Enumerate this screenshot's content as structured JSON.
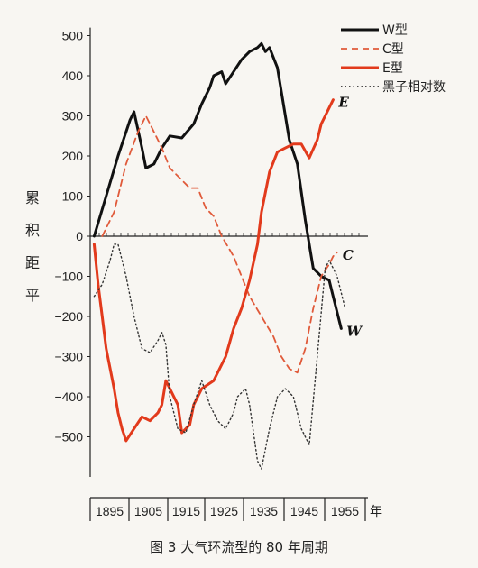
{
  "chart_data": {
    "type": "line",
    "caption": "图 3  大气环流型的 80 年周期",
    "ylabel": "累积距平",
    "xlabel": "年",
    "ylim": [
      -600,
      520
    ],
    "xlim": [
      1890,
      1962
    ],
    "yticks": [
      500,
      400,
      300,
      200,
      100,
      0,
      -100,
      -200,
      -300,
      -400,
      -500
    ],
    "xticks": [
      {
        "label": "1895",
        "value": 1895
      },
      {
        "label": "1905",
        "value": 1905
      },
      {
        "label": "1915",
        "value": 1915
      },
      {
        "label": "1925",
        "value": 1925
      },
      {
        "label": "1935",
        "value": 1935
      },
      {
        "label": "1945",
        "value": 1945
      },
      {
        "label": "1955",
        "value": 1955
      }
    ],
    "series": [
      {
        "name": "W型",
        "end_label": "W",
        "color": "#111111",
        "style": "solid",
        "points": [
          [
            1891,
            0
          ],
          [
            1894,
            100
          ],
          [
            1897,
            200
          ],
          [
            1900,
            290
          ],
          [
            1901,
            310
          ],
          [
            1903,
            220
          ],
          [
            1904,
            170
          ],
          [
            1906,
            180
          ],
          [
            1908,
            220
          ],
          [
            1910,
            250
          ],
          [
            1913,
            245
          ],
          [
            1916,
            280
          ],
          [
            1918,
            330
          ],
          [
            1920,
            370
          ],
          [
            1921,
            400
          ],
          [
            1923,
            410
          ],
          [
            1924,
            380
          ],
          [
            1926,
            410
          ],
          [
            1928,
            440
          ],
          [
            1930,
            460
          ],
          [
            1932,
            470
          ],
          [
            1933,
            480
          ],
          [
            1934,
            460
          ],
          [
            1935,
            470
          ],
          [
            1937,
            420
          ],
          [
            1938,
            360
          ],
          [
            1940,
            240
          ],
          [
            1942,
            180
          ],
          [
            1944,
            40
          ],
          [
            1946,
            -80
          ],
          [
            1948,
            -100
          ],
          [
            1950,
            -110
          ],
          [
            1951,
            -150
          ],
          [
            1953,
            -230
          ]
        ]
      },
      {
        "name": "C型",
        "end_label": "C",
        "color": "#e05a3a",
        "style": "dashed",
        "points": [
          [
            1893,
            0
          ],
          [
            1896,
            60
          ],
          [
            1899,
            180
          ],
          [
            1902,
            260
          ],
          [
            1904,
            300
          ],
          [
            1906,
            260
          ],
          [
            1908,
            220
          ],
          [
            1910,
            170
          ],
          [
            1913,
            140
          ],
          [
            1915,
            120
          ],
          [
            1917,
            120
          ],
          [
            1919,
            70
          ],
          [
            1921,
            50
          ],
          [
            1923,
            0
          ],
          [
            1926,
            -50
          ],
          [
            1928,
            -100
          ],
          [
            1930,
            -150
          ],
          [
            1933,
            -200
          ],
          [
            1936,
            -250
          ],
          [
            1938,
            -300
          ],
          [
            1940,
            -330
          ],
          [
            1942,
            -340
          ],
          [
            1944,
            -280
          ],
          [
            1946,
            -180
          ],
          [
            1948,
            -100
          ],
          [
            1950,
            -70
          ],
          [
            1951,
            -50
          ],
          [
            1952,
            -40
          ]
        ]
      },
      {
        "name": "E型",
        "end_label": "E",
        "color": "#e23a1c",
        "style": "solid",
        "points": [
          [
            1891,
            -20
          ],
          [
            1892,
            -120
          ],
          [
            1893,
            -200
          ],
          [
            1894,
            -280
          ],
          [
            1896,
            -380
          ],
          [
            1897,
            -440
          ],
          [
            1898,
            -480
          ],
          [
            1899,
            -510
          ],
          [
            1901,
            -480
          ],
          [
            1903,
            -450
          ],
          [
            1905,
            -460
          ],
          [
            1907,
            -440
          ],
          [
            1908,
            -420
          ],
          [
            1909,
            -360
          ],
          [
            1910,
            -380
          ],
          [
            1912,
            -420
          ],
          [
            1913,
            -490
          ],
          [
            1915,
            -470
          ],
          [
            1916,
            -420
          ],
          [
            1918,
            -380
          ],
          [
            1921,
            -360
          ],
          [
            1924,
            -300
          ],
          [
            1926,
            -230
          ],
          [
            1928,
            -180
          ],
          [
            1930,
            -110
          ],
          [
            1932,
            -20
          ],
          [
            1933,
            60
          ],
          [
            1935,
            160
          ],
          [
            1937,
            210
          ],
          [
            1939,
            220
          ],
          [
            1941,
            230
          ],
          [
            1943,
            230
          ],
          [
            1945,
            195
          ],
          [
            1947,
            240
          ],
          [
            1948,
            280
          ],
          [
            1950,
            320
          ],
          [
            1951,
            340
          ]
        ]
      },
      {
        "name": "黑子相对数",
        "end_label": "",
        "color": "#333333",
        "style": "dotted",
        "points": [
          [
            1891,
            -150
          ],
          [
            1893,
            -120
          ],
          [
            1895,
            -60
          ],
          [
            1896,
            -20
          ],
          [
            1897,
            -20
          ],
          [
            1899,
            -100
          ],
          [
            1901,
            -200
          ],
          [
            1903,
            -280
          ],
          [
            1905,
            -290
          ],
          [
            1907,
            -260
          ],
          [
            1908,
            -240
          ],
          [
            1909,
            -270
          ],
          [
            1910,
            -400
          ],
          [
            1912,
            -480
          ],
          [
            1914,
            -490
          ],
          [
            1916,
            -420
          ],
          [
            1918,
            -360
          ],
          [
            1920,
            -420
          ],
          [
            1922,
            -460
          ],
          [
            1924,
            -480
          ],
          [
            1926,
            -440
          ],
          [
            1927,
            -400
          ],
          [
            1929,
            -380
          ],
          [
            1930,
            -420
          ],
          [
            1932,
            -560
          ],
          [
            1933,
            -580
          ],
          [
            1935,
            -480
          ],
          [
            1937,
            -400
          ],
          [
            1939,
            -380
          ],
          [
            1941,
            -400
          ],
          [
            1943,
            -480
          ],
          [
            1945,
            -520
          ],
          [
            1947,
            -300
          ],
          [
            1949,
            -80
          ],
          [
            1950,
            -60
          ],
          [
            1952,
            -100
          ],
          [
            1954,
            -180
          ]
        ]
      }
    ],
    "legend": [
      {
        "label": "W型",
        "color": "#111111",
        "style": "solid"
      },
      {
        "label": "C型",
        "color": "#e05a3a",
        "style": "dashed"
      },
      {
        "label": "E型",
        "color": "#e23a1c",
        "style": "solid"
      },
      {
        "label": "黑子相对数",
        "color": "#333333",
        "style": "dotted"
      }
    ],
    "legend_placement": "top-right",
    "grid": false
  }
}
